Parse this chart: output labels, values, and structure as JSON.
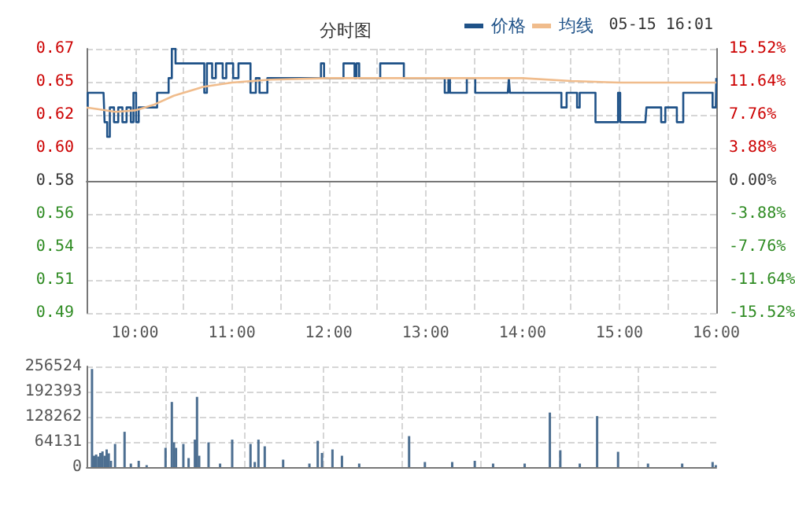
{
  "chart_data": [
    {
      "type": "step",
      "title": "分时图",
      "annotations": [
        "05-15 16:01"
      ],
      "legend": "top",
      "grid": true,
      "xlim": [
        9.5,
        16
      ],
      "xticks": [
        {
          "value": 10,
          "label": "10:00"
        },
        {
          "value": 10.5,
          "label": null
        },
        {
          "value": 11,
          "label": "11:00"
        },
        {
          "value": 11.5,
          "label": null
        },
        {
          "value": 12,
          "label": "12:00"
        },
        {
          "value": 12.5,
          "label": null
        },
        {
          "value": 13,
          "label": "13:00"
        },
        {
          "value": 13.5,
          "label": null
        },
        {
          "value": 14,
          "label": "14:00"
        },
        {
          "value": 14.5,
          "label": null
        },
        {
          "value": 15,
          "label": "15:00"
        },
        {
          "value": 15.5,
          "label": null
        },
        {
          "value": 16,
          "label": "16:00"
        }
      ],
      "ylim": [
        0.49,
        0.67
      ],
      "yticks": [
        0.49,
        {
          "value": 0.5125,
          "label": "0.51"
        },
        {
          "value": 0.535,
          "label": "0.54"
        },
        {
          "value": 0.5575,
          "label": "0.56"
        },
        0.58,
        {
          "value": 0.6025,
          "label": "0.60"
        },
        {
          "value": 0.625,
          "label": "0.62"
        },
        {
          "value": 0.6475,
          "label": "0.65"
        },
        0.67
      ],
      "y2lim": [
        -15.52,
        15.52
      ],
      "y2ticks": [
        {
          "value": -15.52,
          "label": "-15.52%"
        },
        {
          "value": -11.64,
          "label": "-11.64%"
        },
        {
          "value": -7.76,
          "label": "-7.76%"
        },
        {
          "value": -3.88,
          "label": "-3.88%"
        },
        {
          "value": 0,
          "label": "0.00%"
        },
        {
          "value": 3.88,
          "label": "3.88%"
        },
        {
          "value": 7.76,
          "label": "7.76%"
        },
        {
          "value": 11.64,
          "label": "11.64%"
        },
        {
          "value": 15.52,
          "label": "15.52%"
        }
      ],
      "series": [
        {
          "name": "价格",
          "color": "#1f5288",
          "type": "step",
          "x": [
            9.5,
            9.512,
            9.675,
            9.686,
            9.713,
            9.74,
            9.783,
            9.827,
            9.87,
            9.913,
            9.957,
            9.984,
            10.011,
            10.038,
            10.201,
            10.228,
            10.326,
            10.347,
            10.38,
            10.418,
            10.689,
            10.715,
            10.742,
            10.796,
            10.834,
            10.905,
            10.942,
            11.013,
            11.068,
            11.149,
            11.192,
            11.247,
            11.285,
            11.339,
            11.366,
            11.881,
            11.919,
            11.951,
            12.125,
            12.152,
            12.244,
            12.266,
            12.287,
            12.314,
            12.504,
            12.531,
            12.748,
            12.775,
            13.181,
            13.197,
            13.235,
            13.251,
            13.398,
            13.425,
            13.495,
            13.512,
            13.848,
            13.859,
            13.87,
            14.347,
            14.401,
            14.455,
            14.509,
            14.563,
            14.59,
            14.699,
            14.753,
            14.97,
            14.986,
            15.008,
            15.268,
            15.279,
            15.404,
            15.431,
            15.474,
            15.566,
            15.593,
            15.659,
            15.946,
            15.962,
            15.995,
            16
          ],
          "values": [
            0.63,
            0.64,
            0.64,
            0.62,
            0.61,
            0.63,
            0.62,
            0.63,
            0.62,
            0.63,
            0.62,
            0.64,
            0.62,
            0.63,
            0.63,
            0.64,
            0.64,
            0.65,
            0.67,
            0.66,
            0.66,
            0.64,
            0.66,
            0.65,
            0.66,
            0.65,
            0.66,
            0.65,
            0.66,
            0.66,
            0.64,
            0.65,
            0.64,
            0.64,
            0.65,
            0.65,
            0.66,
            0.65,
            0.65,
            0.66,
            0.66,
            0.65,
            0.66,
            0.65,
            0.65,
            0.66,
            0.66,
            0.65,
            0.65,
            0.64,
            0.65,
            0.64,
            0.64,
            0.65,
            0.65,
            0.64,
            0.64,
            0.65,
            0.64,
            0.64,
            0.63,
            0.64,
            0.64,
            0.63,
            0.64,
            0.64,
            0.62,
            0.62,
            0.64,
            0.62,
            0.62,
            0.63,
            0.63,
            0.62,
            0.63,
            0.63,
            0.62,
            0.64,
            0.64,
            0.63,
            0.63,
            0.65
          ]
        },
        {
          "name": "均线",
          "color": "#f0bc8c",
          "type": "line",
          "x": [
            9.5,
            9.6,
            9.8,
            10,
            10.2,
            10.4,
            10.7,
            11,
            11.4,
            12,
            13,
            13.5,
            14,
            14.5,
            15,
            15.5,
            16
          ],
          "values": [
            0.63,
            0.629,
            0.627,
            0.628,
            0.632,
            0.638,
            0.644,
            0.647,
            0.649,
            0.65,
            0.65,
            0.65,
            0.65,
            0.648,
            0.647,
            0.647,
            0.647
          ]
        }
      ]
    },
    {
      "type": "bar",
      "grid": true,
      "tick_labels": "y",
      "color": "#4d6f91",
      "xlim": [
        9.5,
        16
      ],
      "xticks": [
        {
          "value": 10.3125,
          "label": null
        },
        {
          "value": 11.125,
          "label": null
        },
        {
          "value": 11.9375,
          "label": null
        },
        {
          "value": 12.75,
          "label": null
        },
        {
          "value": 13.5625,
          "label": null
        },
        {
          "value": 14.375,
          "label": null
        },
        {
          "value": 15.1875,
          "label": null
        }
      ],
      "ylim": [
        0,
        256524
      ],
      "yticks": [
        0,
        64131,
        128262,
        192393,
        256524
      ],
      "x": [
        9.556,
        9.577,
        9.599,
        9.621,
        9.642,
        9.664,
        9.686,
        9.707,
        9.729,
        9.751,
        9.794,
        9.892,
        9.957,
        10.038,
        10.12,
        10.315,
        10.38,
        10.402,
        10.423,
        10.499,
        10.553,
        10.618,
        10.64,
        10.662,
        10.759,
        10.878,
        11.003,
        11.192,
        11.236,
        11.274,
        11.339,
        11.529,
        11.8,
        11.886,
        11.93,
        12.038,
        12.136,
        12.314,
        12.829,
        12.992,
        13.274,
        13.507,
        13.696,
        14.022,
        14.282,
        14.39,
        14.591,
        14.77,
        14.986,
        15.295,
        15.648,
        15.962,
        15.995
      ],
      "values": [
        250000,
        29000,
        32000,
        27000,
        36000,
        40000,
        29000,
        45000,
        35000,
        16000,
        59000,
        90000,
        9000,
        16000,
        5000,
        49000,
        166000,
        63000,
        49000,
        59000,
        23000,
        70000,
        179000,
        29000,
        63000,
        9000,
        70000,
        59000,
        13000,
        70000,
        53000,
        19000,
        9000,
        67000,
        36000,
        45000,
        29000,
        9000,
        79000,
        13000,
        13000,
        16000,
        9000,
        9000,
        139000,
        43000,
        9000,
        130000,
        39000,
        9000,
        9000,
        13000,
        5000
      ]
    }
  ]
}
